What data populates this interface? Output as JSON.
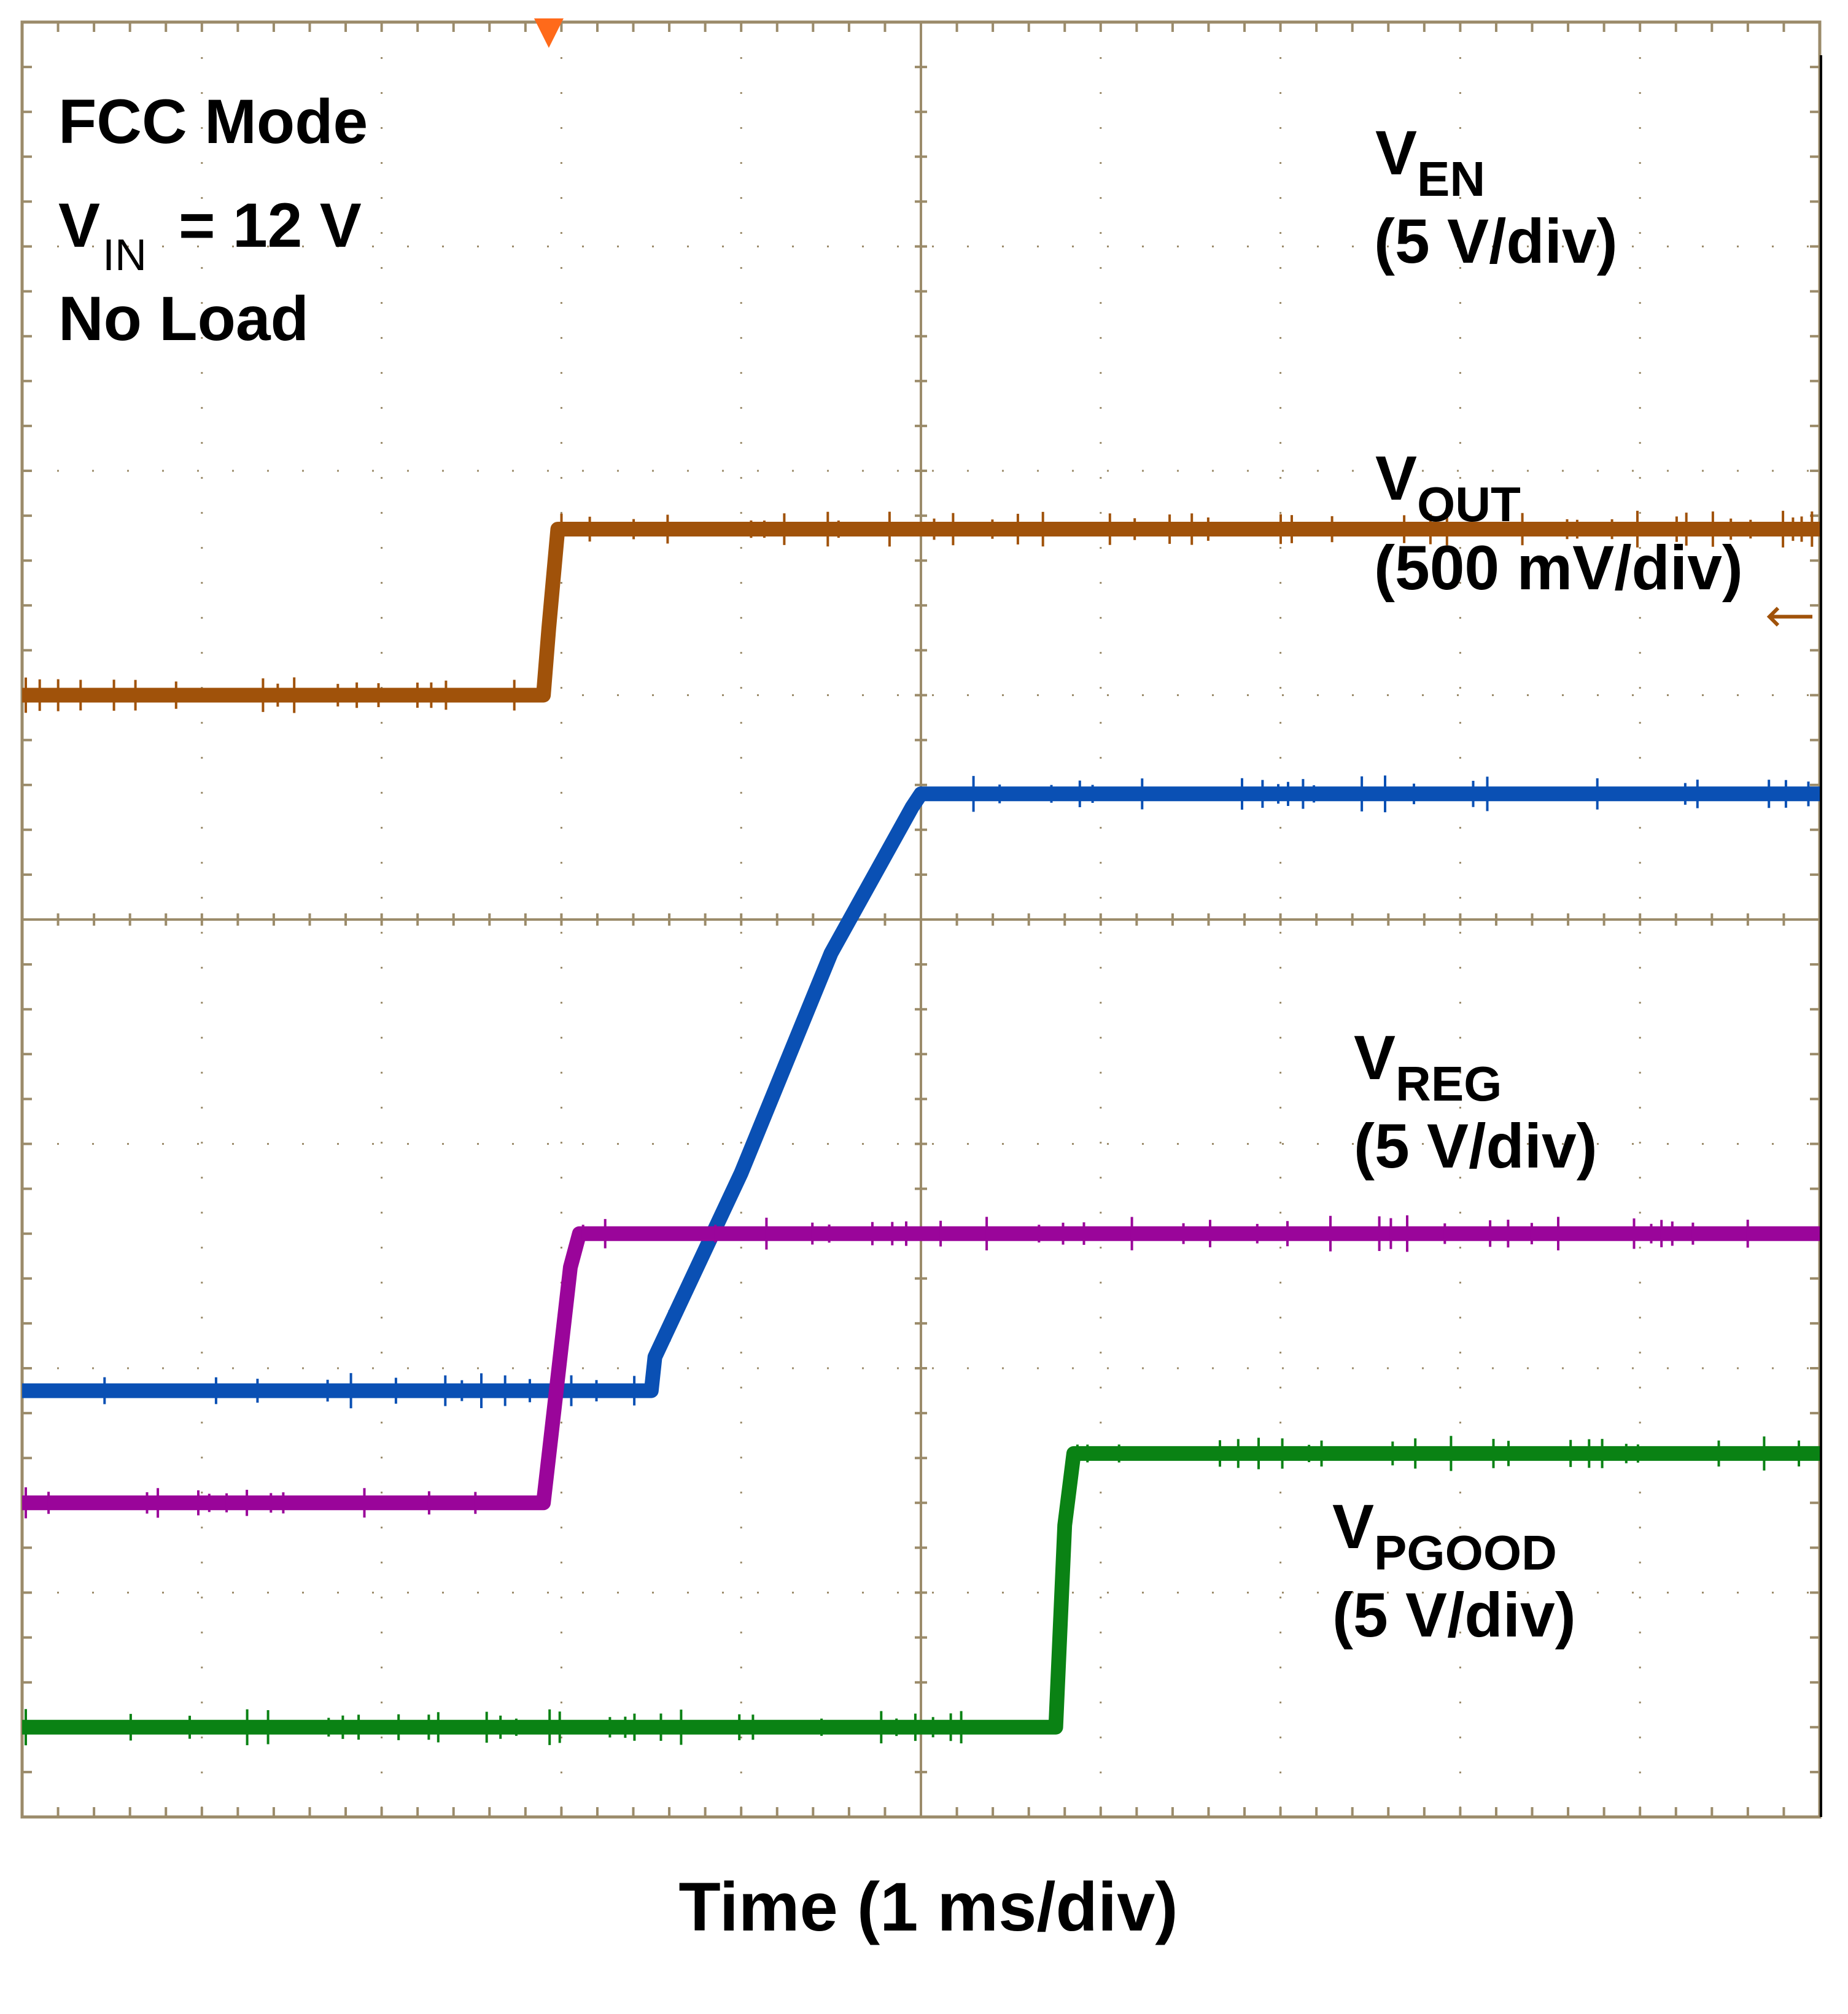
{
  "chart_data": {
    "type": "line",
    "title": "",
    "xlabel": "Time (1 ms/div)",
    "ylabel": "",
    "grid": true,
    "x_unit": "div",
    "y_unit": "div",
    "xlim": [
      0,
      10
    ],
    "ylim": [
      0,
      8
    ],
    "annotations": {
      "mode": "FCC Mode",
      "vin_symbol": "V",
      "vin_subscript": "IN",
      "vin_value": "= 12 V",
      "load": "No Load"
    },
    "series": [
      {
        "name": "EN",
        "label_symbol": "V",
        "label_subscript": "EN",
        "scale": "(5 V/div)",
        "color": "#A0520A",
        "x": [
          0,
          2.9,
          2.93,
          2.98,
          10
        ],
        "y": [
          5.0,
          5.0,
          5.3,
          5.74,
          5.74
        ]
      },
      {
        "name": "OUT",
        "label_symbol": "V",
        "label_subscript": "OUT",
        "scale": "(500 mV/div)",
        "color": "#0A50B4",
        "x": [
          0,
          3.5,
          3.52,
          4.0,
          4.5,
          4.95,
          5.0,
          10
        ],
        "y": [
          1.9,
          1.9,
          2.05,
          2.87,
          3.85,
          4.5,
          4.56,
          4.56
        ]
      },
      {
        "name": "REG",
        "label_symbol": "V",
        "label_subscript": "REG",
        "scale": "(5 V/div)",
        "color": "#9A059A",
        "x": [
          0,
          2.9,
          2.95,
          3.0,
          3.05,
          3.1,
          10
        ],
        "y": [
          1.4,
          1.4,
          1.75,
          2.1,
          2.45,
          2.6,
          2.6
        ]
      },
      {
        "name": "PGOOD",
        "label_symbol": "V",
        "label_subscript": "PGOOD",
        "scale": "(5 V/div)",
        "color": "#0A8214",
        "x": [
          0,
          5.75,
          5.8,
          5.85,
          10
        ],
        "y": [
          0.4,
          0.4,
          1.3,
          1.62,
          1.62
        ]
      }
    ]
  }
}
